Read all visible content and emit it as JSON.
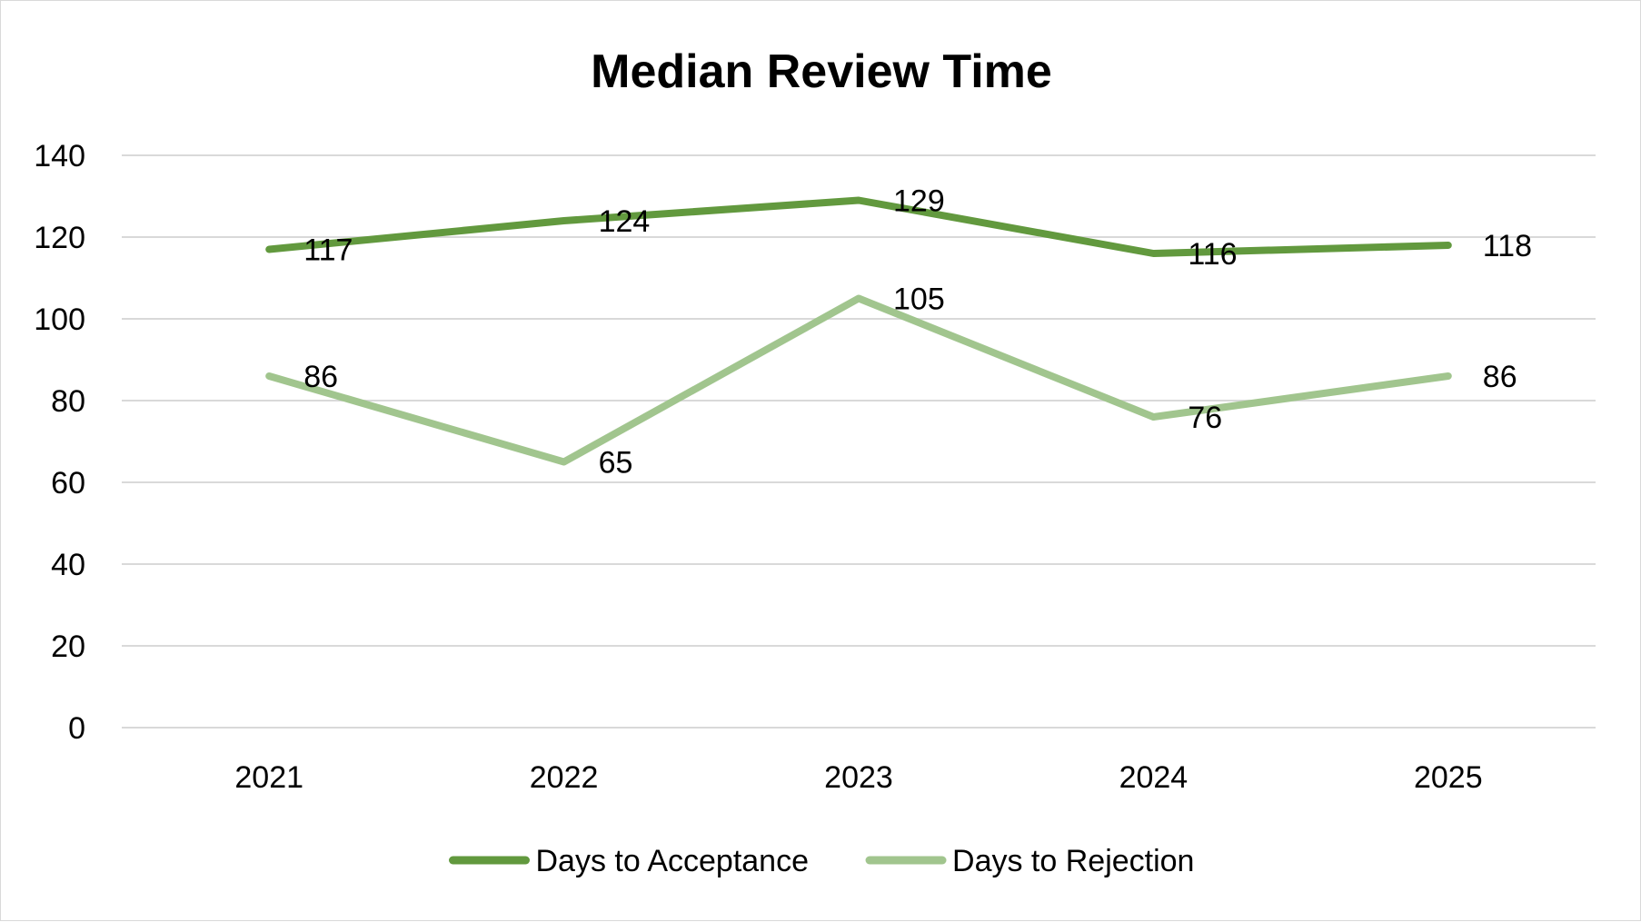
{
  "chart_data": {
    "type": "line",
    "title": "Median Review Time",
    "xlabel": "",
    "ylabel": "",
    "categories": [
      "2021",
      "2022",
      "2023",
      "2024",
      "2025"
    ],
    "ylim": [
      0,
      140
    ],
    "yticks": [
      0,
      20,
      40,
      60,
      80,
      100,
      120,
      140
    ],
    "grid": true,
    "legend": "bottom",
    "series": [
      {
        "name": "Days to Acceptance",
        "values": [
          117,
          124,
          129,
          116,
          118
        ],
        "color": "#62993e"
      },
      {
        "name": "Days to Rejection",
        "values": [
          86,
          65,
          105,
          76,
          86
        ],
        "color": "#a1c58e"
      }
    ]
  }
}
